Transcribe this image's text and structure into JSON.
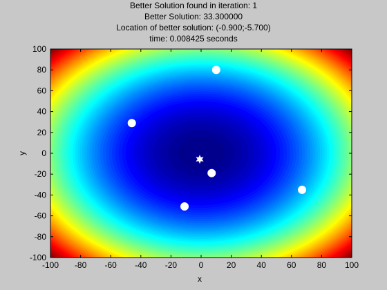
{
  "header": {
    "line1": "Better Solution found in iteration: 1",
    "line2": "Better Solution: 33.300000",
    "line3": "Location of better solution: (-0.900;-5.700)",
    "line4": "time: 0.008425 seconds"
  },
  "chart_data": {
    "type": "heatmap",
    "title": "Better Solution found in iteration: 1",
    "xlabel": "x",
    "ylabel": "y",
    "xlim": [
      -100,
      100
    ],
    "ylim": [
      -100,
      100
    ],
    "xticks": [
      -100,
      -80,
      -60,
      -40,
      -20,
      0,
      20,
      40,
      60,
      80,
      100
    ],
    "yticks": [
      -100,
      -80,
      -60,
      -40,
      -20,
      0,
      20,
      40,
      60,
      80,
      100
    ],
    "colormap": "jet",
    "grid": false,
    "population": [
      {
        "x": 10,
        "y": 80
      },
      {
        "x": -46,
        "y": 29
      },
      {
        "x": 7,
        "y": -19
      },
      {
        "x": -11,
        "y": -51
      },
      {
        "x": 67,
        "y": -35
      }
    ],
    "best": {
      "x": -0.9,
      "y": -5.7
    },
    "colors": {
      "background": "#c8c8c8",
      "marker": "#ffffff"
    }
  }
}
